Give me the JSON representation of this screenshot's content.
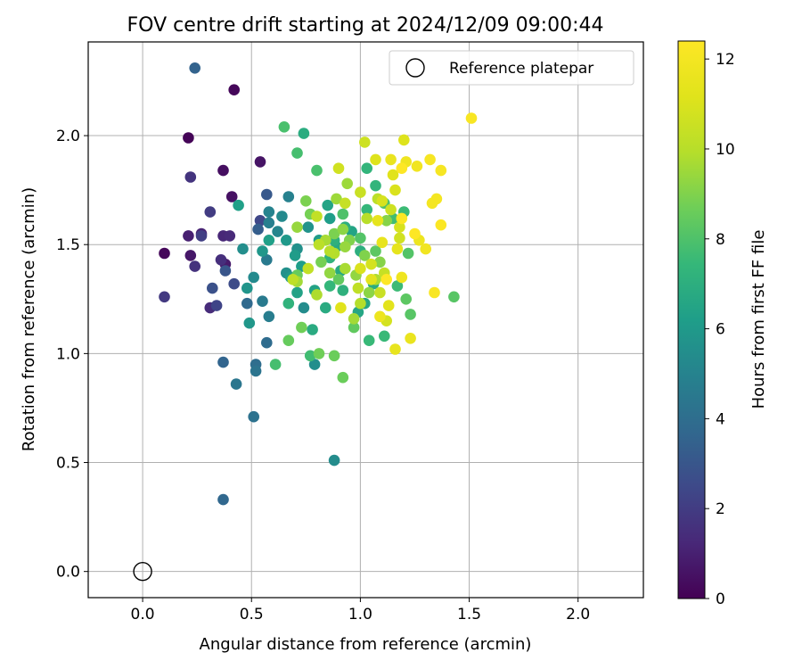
{
  "chart_data": {
    "type": "scatter",
    "title": "FOV centre drift starting at 2024/12/09 09:00:44",
    "xlabel": "Angular distance from reference (arcmin)",
    "ylabel": "Rotation from reference (arcmin)",
    "xlim": [
      -0.25,
      2.3
    ],
    "ylim": [
      -0.12,
      2.43
    ],
    "xticks": [
      0.0,
      0.5,
      1.0,
      1.5,
      2.0
    ],
    "xtick_labels": [
      "0.0",
      "0.5",
      "1.0",
      "1.5",
      "2.0"
    ],
    "yticks": [
      0.0,
      0.5,
      1.0,
      1.5,
      2.0
    ],
    "ytick_labels": [
      "0.0",
      "0.5",
      "1.0",
      "1.5",
      "2.0"
    ],
    "grid": true,
    "legend": {
      "placement": "top-right",
      "entries": [
        {
          "label": "Reference platepar",
          "marker": "open-circle"
        }
      ]
    },
    "reference_point": {
      "x": 0.0,
      "y": 0.0
    },
    "colorbar": {
      "label": "Hours from first FF file",
      "colormap": "viridis",
      "range": [
        0,
        12.4
      ],
      "ticks": [
        0,
        2,
        4,
        6,
        8,
        10,
        12
      ],
      "tick_labels": [
        "0",
        "2",
        "4",
        "6",
        "8",
        "10",
        "12"
      ]
    },
    "points": [
      [
        0.1,
        1.46,
        0.2
      ],
      [
        0.21,
        1.99,
        0.1
      ],
      [
        0.42,
        2.21,
        0.2
      ],
      [
        0.37,
        1.84,
        0.4
      ],
      [
        0.41,
        1.72,
        0.5
      ],
      [
        0.54,
        1.88,
        0.6
      ],
      [
        0.22,
        1.45,
        0.7
      ],
      [
        0.38,
        1.41,
        0.8
      ],
      [
        0.21,
        1.54,
        1.0
      ],
      [
        0.27,
        1.55,
        1.1
      ],
      [
        0.37,
        1.54,
        1.2
      ],
      [
        0.4,
        1.54,
        1.3
      ],
      [
        0.31,
        1.21,
        1.4
      ],
      [
        0.36,
        1.43,
        1.5
      ],
      [
        0.24,
        1.4,
        1.6
      ],
      [
        0.22,
        1.81,
        1.7
      ],
      [
        0.1,
        1.26,
        1.9
      ],
      [
        0.31,
        1.65,
        2.0
      ],
      [
        0.27,
        1.54,
        2.1
      ],
      [
        0.34,
        1.22,
        2.3
      ],
      [
        0.54,
        1.61,
        2.4
      ],
      [
        0.42,
        1.32,
        2.6
      ],
      [
        0.32,
        1.3,
        2.8
      ],
      [
        0.38,
        1.38,
        3.0
      ],
      [
        0.57,
        1.73,
        3.1
      ],
      [
        0.53,
        1.57,
        3.3
      ],
      [
        0.24,
        2.31,
        3.5
      ],
      [
        0.37,
        0.96,
        3.6
      ],
      [
        0.37,
        0.33,
        3.7
      ],
      [
        0.48,
        1.23,
        3.8
      ],
      [
        0.57,
        1.05,
        3.9
      ],
      [
        0.52,
        0.95,
        4.0
      ],
      [
        0.51,
        0.71,
        4.2
      ],
      [
        0.52,
        0.92,
        4.3
      ],
      [
        0.43,
        0.86,
        4.4
      ],
      [
        0.55,
        1.24,
        4.6
      ],
      [
        0.57,
        1.43,
        4.6
      ],
      [
        0.58,
        1.17,
        4.7
      ],
      [
        0.58,
        1.6,
        4.8
      ],
      [
        0.67,
        1.72,
        4.9
      ],
      [
        0.58,
        1.65,
        5.0
      ],
      [
        0.62,
        1.56,
        5.1
      ],
      [
        0.64,
        1.63,
        5.3
      ],
      [
        0.51,
        1.35,
        5.3
      ],
      [
        0.74,
        1.21,
        5.4
      ],
      [
        0.88,
        0.51,
        5.4
      ],
      [
        0.79,
        0.95,
        5.5
      ],
      [
        0.46,
        1.48,
        5.5
      ],
      [
        0.71,
        1.48,
        5.6
      ],
      [
        0.66,
        1.37,
        5.6
      ],
      [
        0.76,
        1.58,
        5.7
      ],
      [
        0.48,
        1.3,
        5.8
      ],
      [
        0.49,
        1.14,
        5.9
      ],
      [
        0.55,
        1.47,
        5.9
      ],
      [
        0.66,
        1.52,
        6.0
      ],
      [
        0.68,
        1.35,
        6.0
      ],
      [
        0.7,
        1.45,
        6.1
      ],
      [
        0.81,
        1.52,
        6.1
      ],
      [
        0.86,
        1.62,
        6.2
      ],
      [
        0.73,
        1.4,
        6.2
      ],
      [
        0.44,
        1.68,
        6.3
      ],
      [
        0.58,
        1.52,
        6.3
      ],
      [
        0.71,
        1.28,
        6.4
      ],
      [
        0.79,
        1.29,
        6.4
      ],
      [
        0.85,
        1.68,
        6.5
      ],
      [
        0.96,
        1.56,
        6.5
      ],
      [
        0.99,
        1.19,
        6.6
      ],
      [
        1.02,
        1.23,
        6.6
      ],
      [
        0.89,
        1.49,
        6.7
      ],
      [
        0.91,
        1.38,
        6.7
      ],
      [
        0.78,
        1.11,
        6.8
      ],
      [
        0.84,
        1.21,
        6.8
      ],
      [
        0.74,
        2.01,
        6.9
      ],
      [
        1.06,
        1.32,
        6.9
      ],
      [
        1.0,
        1.47,
        7.0
      ],
      [
        0.93,
        1.58,
        7.0
      ],
      [
        0.92,
        1.29,
        7.1
      ],
      [
        0.88,
        1.52,
        7.1
      ],
      [
        0.86,
        1.44,
        7.2
      ],
      [
        0.67,
        1.23,
        7.2
      ],
      [
        1.03,
        1.85,
        7.3
      ],
      [
        1.07,
        1.77,
        7.3
      ],
      [
        0.86,
        1.31,
        7.4
      ],
      [
        1.03,
        1.66,
        7.4
      ],
      [
        1.11,
        1.08,
        7.5
      ],
      [
        1.04,
        1.06,
        7.5
      ],
      [
        1.2,
        1.65,
        7.6
      ],
      [
        1.17,
        1.31,
        7.6
      ],
      [
        1.15,
        1.62,
        7.7
      ],
      [
        0.77,
        0.99,
        7.7
      ],
      [
        0.61,
        0.95,
        7.8
      ],
      [
        0.71,
        1.92,
        7.8
      ],
      [
        0.65,
        2.04,
        7.9
      ],
      [
        0.8,
        1.84,
        7.9
      ],
      [
        0.92,
        1.64,
        8.0
      ],
      [
        1.11,
        1.69,
        8.0
      ],
      [
        1.0,
        1.53,
        8.1
      ],
      [
        1.22,
        1.46,
        8.1
      ],
      [
        1.43,
        1.26,
        8.2
      ],
      [
        1.23,
        1.18,
        8.2
      ],
      [
        1.21,
        1.25,
        8.3
      ],
      [
        1.07,
        1.47,
        8.3
      ],
      [
        0.97,
        1.12,
        8.4
      ],
      [
        0.9,
        1.34,
        8.4
      ],
      [
        0.71,
        1.36,
        8.5
      ],
      [
        0.67,
        1.06,
        8.5
      ],
      [
        0.88,
        0.99,
        8.6
      ],
      [
        0.92,
        0.89,
        8.6
      ],
      [
        0.81,
        1.0,
        8.7
      ],
      [
        0.73,
        1.12,
        8.7
      ],
      [
        0.77,
        1.64,
        8.8
      ],
      [
        0.82,
        1.42,
        8.8
      ],
      [
        0.88,
        1.55,
        8.9
      ],
      [
        0.75,
        1.7,
        8.9
      ],
      [
        0.95,
        1.52,
        9.0
      ],
      [
        1.02,
        1.45,
        9.0
      ],
      [
        1.09,
        1.42,
        9.1
      ],
      [
        1.12,
        1.61,
        9.1
      ],
      [
        0.92,
        1.57,
        9.2
      ],
      [
        1.04,
        1.28,
        9.2
      ],
      [
        0.98,
        1.36,
        9.3
      ],
      [
        0.86,
        1.37,
        9.3
      ],
      [
        0.93,
        1.49,
        9.4
      ],
      [
        0.71,
        1.58,
        9.4
      ],
      [
        0.94,
        1.78,
        9.5
      ],
      [
        0.89,
        1.71,
        9.5
      ],
      [
        0.97,
        1.16,
        9.6
      ],
      [
        0.71,
        1.33,
        9.6
      ],
      [
        0.84,
        1.52,
        9.7
      ],
      [
        0.93,
        1.39,
        9.7
      ],
      [
        0.8,
        1.27,
        9.8
      ],
      [
        1.07,
        1.34,
        9.8
      ],
      [
        0.88,
        1.46,
        9.9
      ],
      [
        1.0,
        1.23,
        9.9
      ],
      [
        1.03,
        1.62,
        10.0
      ],
      [
        0.86,
        1.47,
        10.0
      ],
      [
        0.81,
        1.5,
        10.1
      ],
      [
        1.08,
        1.71,
        10.1
      ],
      [
        0.99,
        1.3,
        10.2
      ],
      [
        0.69,
        1.34,
        10.2
      ],
      [
        0.76,
        1.39,
        10.3
      ],
      [
        0.8,
        1.63,
        10.3
      ],
      [
        0.93,
        1.69,
        10.4
      ],
      [
        1.11,
        1.37,
        10.4
      ],
      [
        1.0,
        1.74,
        10.5
      ],
      [
        1.09,
        1.28,
        10.5
      ],
      [
        1.14,
        1.66,
        10.6
      ],
      [
        1.02,
        1.97,
        10.6
      ],
      [
        1.18,
        1.53,
        10.7
      ],
      [
        0.9,
        1.85,
        10.7
      ],
      [
        1.05,
        1.41,
        10.8
      ],
      [
        1.12,
        1.15,
        10.8
      ],
      [
        1.18,
        1.58,
        10.9
      ],
      [
        1.1,
        1.7,
        10.9
      ],
      [
        1.0,
        1.39,
        11.0
      ],
      [
        1.16,
        1.75,
        11.0
      ],
      [
        1.2,
        1.98,
        11.1
      ],
      [
        1.07,
        1.89,
        11.1
      ],
      [
        0.91,
        1.21,
        11.2
      ],
      [
        1.15,
        1.82,
        11.2
      ],
      [
        1.05,
        1.34,
        11.3
      ],
      [
        1.13,
        1.22,
        11.3
      ],
      [
        1.17,
        1.48,
        11.4
      ],
      [
        1.08,
        1.61,
        11.4
      ],
      [
        1.1,
        1.51,
        11.5
      ],
      [
        1.16,
        1.02,
        11.5
      ],
      [
        1.23,
        1.07,
        11.6
      ],
      [
        1.14,
        1.89,
        11.6
      ],
      [
        1.09,
        1.17,
        11.7
      ],
      [
        1.27,
        1.52,
        11.7
      ],
      [
        1.19,
        1.35,
        11.8
      ],
      [
        1.21,
        1.88,
        11.8
      ],
      [
        1.26,
        1.86,
        11.9
      ],
      [
        1.3,
        1.48,
        11.9
      ],
      [
        1.33,
        1.69,
        12.0
      ],
      [
        1.35,
        1.71,
        12.0
      ],
      [
        1.32,
        1.89,
        12.1
      ],
      [
        1.37,
        1.84,
        12.1
      ],
      [
        1.51,
        2.08,
        12.2
      ],
      [
        1.34,
        1.28,
        12.2
      ],
      [
        1.37,
        1.59,
        12.3
      ],
      [
        1.19,
        1.62,
        12.3
      ],
      [
        1.12,
        1.34,
        12.4
      ],
      [
        1.25,
        1.55,
        12.4
      ],
      [
        1.19,
        1.85,
        12.4
      ]
    ]
  }
}
